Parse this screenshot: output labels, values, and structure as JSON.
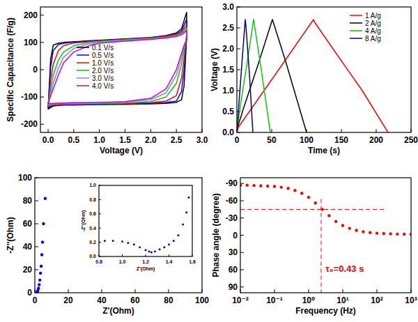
{
  "chart_data": [
    {
      "type": "line",
      "x_label": "Voltage (V)",
      "y_label": "Specific Capacitance (F/g)",
      "legend": "center",
      "xlim": [
        -0.15,
        3.0
      ],
      "ylim": [
        -230,
        230
      ],
      "xticks": [
        {
          "value": 0,
          "label": "0.0"
        },
        0.5,
        {
          "value": 1,
          "label": "1.0"
        },
        1.5,
        {
          "value": 2,
          "label": "2.0"
        },
        2.5,
        {
          "value": 3,
          "label": "3.0"
        }
      ],
      "yticks": [
        -200,
        -100,
        0,
        100,
        200
      ],
      "x": [
        0,
        0.05,
        0.1,
        0.2,
        0.3,
        0.5,
        0.8,
        1.0,
        1.5,
        2.0,
        2.3,
        2.5,
        2.6,
        2.7,
        2.7,
        2.65,
        2.6,
        2.5,
        2.3,
        2.0,
        1.5,
        1.0,
        0.5,
        0.3,
        0.1,
        0
      ],
      "series": [
        {
          "name": "0.1 V/s",
          "color": "#000000",
          "values": [
            -145,
            40,
            90,
            97,
            100,
            102,
            106,
            108,
            113,
            118,
            125,
            135,
            150,
            210,
            120,
            -60,
            -110,
            -120,
            -123,
            -125,
            -127,
            -128,
            -130,
            -130,
            -133,
            -145
          ]
        },
        {
          "name": "0.5 V/s",
          "color": "#0000ff",
          "values": [
            -140,
            10,
            70,
            92,
            97,
            101,
            105,
            107,
            112,
            117,
            123,
            131,
            142,
            185,
            130,
            0,
            -80,
            -115,
            -120,
            -123,
            -125,
            -127,
            -128,
            -128,
            -130,
            -140
          ]
        },
        {
          "name": "1.0 V/s",
          "color": "#ff0000",
          "values": [
            -135,
            -40,
            20,
            70,
            88,
            98,
            103,
            106,
            111,
            116,
            122,
            129,
            138,
            165,
            125,
            40,
            -30,
            -95,
            -115,
            -121,
            -124,
            -126,
            -127,
            -127,
            -129,
            -135
          ]
        },
        {
          "name": "2.0 V/s",
          "color": "#00cc00",
          "values": [
            -130,
            -70,
            -20,
            35,
            65,
            88,
            100,
            104,
            110,
            115,
            120,
            126,
            133,
            155,
            120,
            70,
            20,
            -50,
            -100,
            -117,
            -122,
            -124,
            -125,
            -125,
            -127,
            -130
          ]
        },
        {
          "name": "3.0 V/s",
          "color": "#8080ff",
          "values": [
            -128,
            -85,
            -50,
            5,
            45,
            78,
            95,
            101,
            108,
            113,
            118,
            124,
            130,
            148,
            115,
            85,
            45,
            -20,
            -85,
            -110,
            -119,
            -122,
            -123,
            -123,
            -125,
            -128
          ]
        },
        {
          "name": "4.0 V/s",
          "color": "#cc00cc",
          "values": [
            -125,
            -95,
            -70,
            -20,
            25,
            65,
            88,
            97,
            105,
            111,
            116,
            122,
            128,
            143,
            110,
            90,
            60,
            0,
            -70,
            -105,
            -117,
            -120,
            -121,
            -122,
            -123,
            -125
          ]
        }
      ]
    },
    {
      "type": "line",
      "x_label": "Time (s)",
      "y_label": "Voltage (V)",
      "legend": "upper right",
      "xlim": [
        0,
        250
      ],
      "ylim": [
        0,
        3.0
      ],
      "xticks": [
        0,
        50,
        100,
        150,
        200,
        250
      ],
      "yticks": [
        {
          "value": 0,
          "label": "0.0"
        },
        0.5,
        {
          "value": 1,
          "label": "1.0"
        },
        1.5,
        {
          "value": 2,
          "label": "2.0"
        },
        2.5,
        {
          "value": 3,
          "label": "3.0"
        }
      ],
      "series": [
        {
          "name": "1 A/g",
          "color": "#ff0000",
          "x": [
            0,
            2,
            20,
            60,
            110,
            111,
            140,
            180,
            217
          ],
          "values": [
            0,
            0.12,
            0.55,
            1.5,
            2.7,
            2.65,
            1.95,
            1.0,
            0
          ]
        },
        {
          "name": "2 A/g",
          "color": "#000000",
          "x": [
            0,
            1,
            10,
            30,
            51,
            52,
            70,
            100
          ],
          "values": [
            0,
            0.12,
            0.6,
            1.6,
            2.7,
            2.65,
            1.7,
            0
          ]
        },
        {
          "name": "4 A/g",
          "color": "#00cc00",
          "x": [
            0,
            1,
            5,
            15,
            24,
            25,
            35,
            48
          ],
          "values": [
            0,
            0.15,
            0.65,
            1.7,
            2.7,
            2.6,
            1.5,
            0
          ]
        },
        {
          "name": "8 A/g",
          "color": "#000080",
          "x": [
            0,
            1,
            3,
            7,
            12,
            13,
            18,
            23
          ],
          "values": [
            0,
            0.2,
            0.7,
            1.6,
            2.7,
            2.55,
            1.4,
            0
          ]
        }
      ]
    },
    {
      "type": "scatter",
      "x_label": "Z'(Ohm)",
      "y_label": "-Z''(Ohm)",
      "xlim": [
        0,
        100
      ],
      "ylim": [
        0,
        100
      ],
      "xticks": [
        0,
        20,
        40,
        60,
        80,
        100
      ],
      "yticks": [
        0,
        20,
        40,
        60,
        80,
        100
      ],
      "x": [
        1.0,
        1.2,
        1.5,
        1.8,
        2.2,
        2.6,
        3.0,
        3.4,
        3.8,
        4.2,
        4.6,
        5.2,
        6.2
      ],
      "series": [
        {
          "color": "#0000ff",
          "marker": "circle",
          "values": [
            0.2,
            0.1,
            0.6,
            2,
            4,
            7,
            11,
            17,
            23,
            33,
            44,
            60,
            82
          ]
        }
      ]
    },
    {
      "type": "scatter",
      "x_label": "Frequency (Hz)",
      "y_label": "Phase angle (degree)",
      "log": "x",
      "xlim": [
        0.01,
        1000
      ],
      "ylim": [
        100,
        -100
      ],
      "xticks": [
        {
          "value": 0.01,
          "label": "10⁻²"
        },
        {
          "value": 0.1,
          "label": "10⁻¹"
        },
        {
          "value": 1,
          "label": "10⁰"
        },
        {
          "value": 10,
          "label": "10¹"
        },
        {
          "value": 100,
          "label": "10²"
        },
        {
          "value": 1000,
          "label": "10³"
        }
      ],
      "yticks": [
        -90,
        -60,
        -30,
        0,
        30,
        60,
        90
      ],
      "x": [
        0.01,
        0.0158,
        0.0251,
        0.0398,
        0.0631,
        0.1,
        0.158,
        0.251,
        0.398,
        0.631,
        1,
        1.58,
        2.51,
        3.98,
        6.31,
        10,
        15.8,
        25.1,
        39.8,
        63.1,
        100,
        158,
        251,
        398,
        631,
        1000
      ],
      "series": [
        {
          "color": "#ff0000",
          "marker": "circle",
          "values": [
            -87,
            -87,
            -86.5,
            -86,
            -85.5,
            -85,
            -83.5,
            -81.5,
            -78,
            -73,
            -66,
            -56,
            -45,
            -34,
            -24,
            -17,
            -12,
            -8.5,
            -6,
            -4.5,
            -3.5,
            -3,
            -2.5,
            -2,
            -1.8,
            -1.5
          ]
        }
      ],
      "annotation": {
        "text": "τ₀=0.43 s",
        "x": 2.33,
        "y": -45,
        "color": "#ff0000"
      }
    },
    {
      "type": "scatter",
      "x_label": "Z'(Ohm)",
      "y_label": "-Z''(Ohm)",
      "xlim": [
        0.8,
        1.6
      ],
      "ylim": [
        0,
        1.0
      ],
      "xticks": [
        0.8,
        {
          "value": 1,
          "label": "1.0"
        },
        1.2,
        1.4,
        1.6
      ],
      "yticks": [
        {
          "value": 0,
          "label": "0.0"
        },
        0.2,
        0.4,
        0.6,
        0.8,
        {
          "value": 1,
          "label": "1.0"
        }
      ],
      "x": [
        0.85,
        0.92,
        1.0,
        1.05,
        1.1,
        1.15,
        1.2,
        1.23,
        1.25,
        1.28,
        1.32,
        1.36,
        1.4,
        1.44,
        1.48,
        1.52,
        1.55,
        1.57
      ],
      "series": [
        {
          "color": "#0000ff",
          "marker": "circle",
          "values": [
            0.22,
            0.22,
            0.21,
            0.19,
            0.17,
            0.13,
            0.09,
            0.07,
            0.06,
            0.07,
            0.1,
            0.13,
            0.17,
            0.22,
            0.3,
            0.45,
            0.62,
            0.83
          ]
        }
      ]
    }
  ]
}
